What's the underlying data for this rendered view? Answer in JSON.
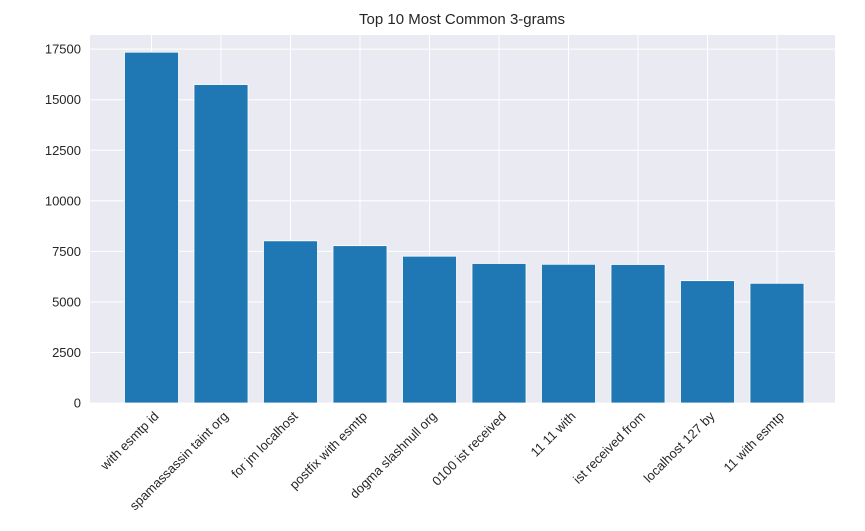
{
  "chart_data": {
    "type": "bar",
    "title": "Top 10 Most Common 3-grams",
    "xlabel": "",
    "ylabel": "",
    "categories": [
      "with esmtp id",
      "spamassassin taint org",
      "for jm localhost",
      "postfix with esmtp",
      "dogma slashnull org",
      "0100 ist received",
      "11 11 with",
      "ist received from",
      "localhost 127 by",
      "11 with esmtp"
    ],
    "values": [
      17350,
      15750,
      8020,
      7780,
      7260,
      6900,
      6860,
      6850,
      6050,
      5920
    ],
    "ylim": [
      0,
      18200
    ],
    "yticks": [
      0,
      2500,
      5000,
      7500,
      10000,
      12500,
      15000,
      17500
    ],
    "grid": true,
    "colors": {
      "bar": "#1f77b4",
      "plot_background": "#eaeaf2",
      "grid": "#ffffff",
      "text": "#262626"
    }
  }
}
